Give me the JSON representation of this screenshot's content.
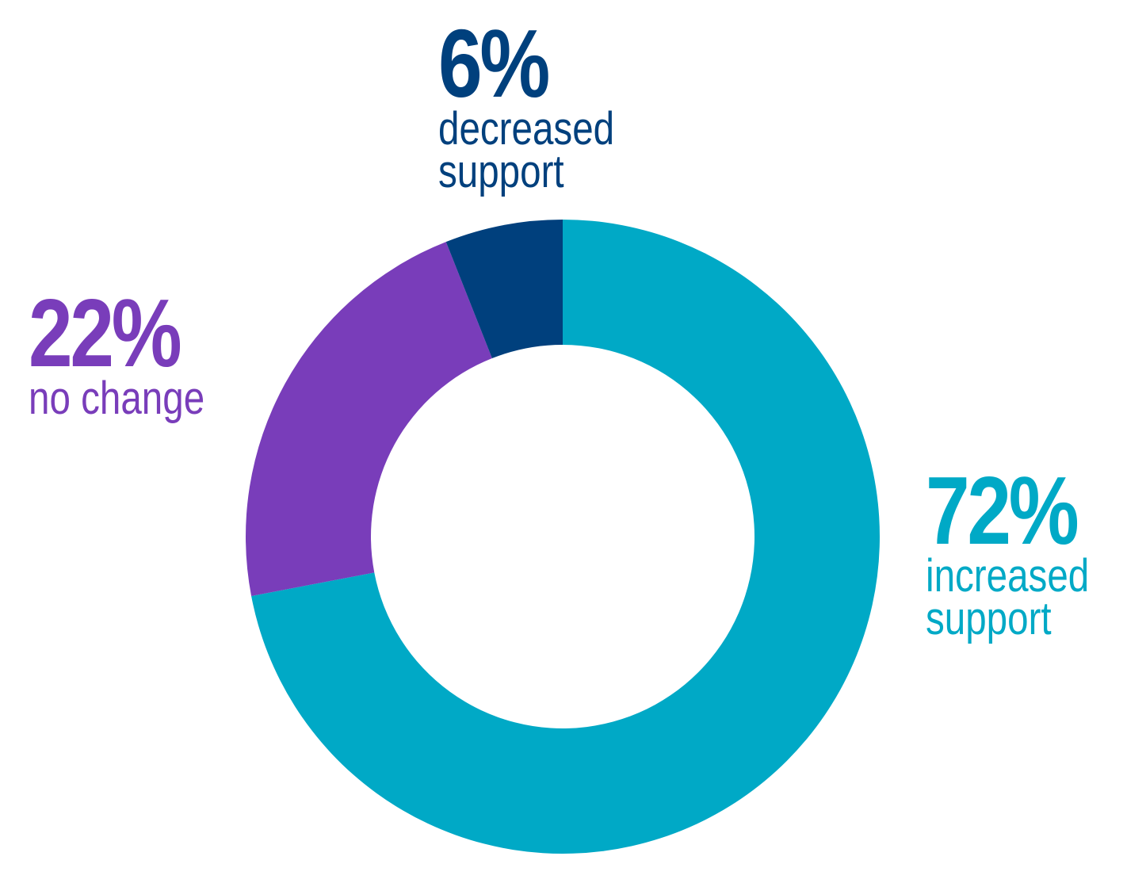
{
  "chart_data": {
    "type": "donut",
    "categories": [
      "increased support",
      "no change",
      "decreased support"
    ],
    "values": [
      72,
      22,
      6
    ],
    "value_labels": [
      "72%",
      "22%",
      "6%"
    ],
    "colors": [
      "#00a9c6",
      "#793dba",
      "#00407d"
    ]
  }
}
